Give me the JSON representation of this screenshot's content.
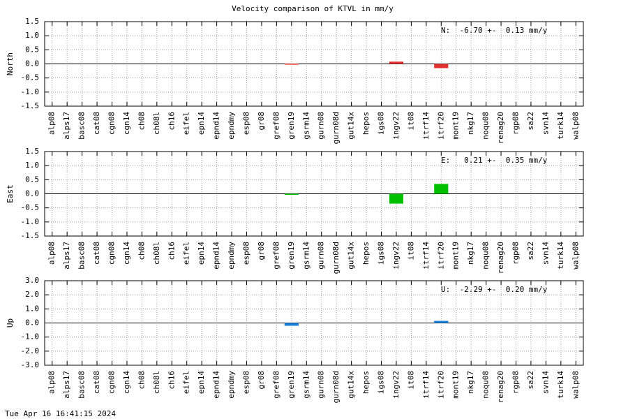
{
  "title": "Velocity comparison of KTVL in mm/y",
  "footer": "Tue Apr 16 16:41:15 2024",
  "chart_data": [
    {
      "type": "bar",
      "ylabel": "North",
      "annotation": "N:  -6.70 +-  0.13 mm/y",
      "color": "#e03030",
      "grid": true,
      "categories": [
        "alp08",
        "alps17",
        "basc08",
        "cat08",
        "cgn08",
        "cgn14",
        "ch08",
        "ch08l",
        "ch16",
        "eifel",
        "epn14",
        "epnd14",
        "epndmy",
        "esp08",
        "gr08",
        "gref08",
        "gren19",
        "gsrm14",
        "gurn08",
        "gurn08d",
        "gut14x",
        "hepos",
        "igs08",
        "ingv22",
        "it08",
        "itrf14",
        "itrf20",
        "mont19",
        "nkg17",
        "noqu08",
        "renag20",
        "rgp08",
        "sa22",
        "svn14",
        "turk14",
        "walp08"
      ],
      "values": [
        null,
        null,
        null,
        null,
        null,
        null,
        null,
        null,
        null,
        null,
        null,
        null,
        null,
        null,
        null,
        null,
        0.01,
        null,
        null,
        null,
        null,
        null,
        null,
        0.08,
        null,
        null,
        -0.15,
        null,
        null,
        null,
        null,
        null,
        null,
        null,
        null,
        null
      ],
      "ylim": [
        -1.5,
        1.5
      ],
      "yticks": [
        1.5,
        {
          "value": 1.0,
          "label": "1.0"
        },
        0.5,
        {
          "value": 0.0,
          "label": "0.0"
        },
        -0.5,
        {
          "value": -1.0,
          "label": "-1.0"
        },
        -1.5
      ]
    },
    {
      "type": "bar",
      "ylabel": "East",
      "annotation": "E:   0.21 +-  0.35 mm/y",
      "color": "#00c000",
      "grid": true,
      "categories": [
        "alp08",
        "alps17",
        "basc08",
        "cat08",
        "cgn08",
        "cgn14",
        "ch08",
        "ch08l",
        "ch16",
        "eifel",
        "epn14",
        "epnd14",
        "epndmy",
        "esp08",
        "gr08",
        "gref08",
        "gren19",
        "gsrm14",
        "gurn08",
        "gurn08d",
        "gut14x",
        "hepos",
        "igs08",
        "ingv22",
        "it08",
        "itrf14",
        "itrf20",
        "mont19",
        "nkg17",
        "noqu08",
        "renag20",
        "rgp08",
        "sa22",
        "svn14",
        "turk14",
        "walp08"
      ],
      "values": [
        null,
        null,
        null,
        null,
        null,
        null,
        null,
        null,
        null,
        null,
        null,
        null,
        null,
        null,
        null,
        null,
        -0.02,
        null,
        null,
        null,
        null,
        null,
        null,
        -0.35,
        null,
        null,
        0.35,
        null,
        null,
        null,
        null,
        null,
        null,
        null,
        null,
        null
      ],
      "ylim": [
        -1.5,
        1.5
      ],
      "yticks": [
        1.5,
        {
          "value": 1.0,
          "label": "1.0"
        },
        0.5,
        {
          "value": 0.0,
          "label": "0.0"
        },
        -0.5,
        {
          "value": -1.0,
          "label": "-1.0"
        },
        -1.5
      ]
    },
    {
      "type": "bar",
      "ylabel": "Up",
      "annotation": "U:  -2.29 +-  0.20 mm/y",
      "color": "#1a7fd8",
      "grid": true,
      "categories": [
        "alp08",
        "alps17",
        "basc08",
        "cat08",
        "cgn08",
        "cgn14",
        "ch08",
        "ch08l",
        "ch16",
        "eifel",
        "epn14",
        "epnd14",
        "epndmy",
        "esp08",
        "gr08",
        "gref08",
        "gren19",
        "gsrm14",
        "gurn08",
        "gurn08d",
        "gut14x",
        "hepos",
        "igs08",
        "ingv22",
        "it08",
        "itrf14",
        "itrf20",
        "mont19",
        "nkg17",
        "noqu08",
        "renag20",
        "rgp08",
        "sa22",
        "svn14",
        "turk14",
        "walp08"
      ],
      "values": [
        null,
        null,
        null,
        null,
        null,
        null,
        null,
        null,
        null,
        null,
        null,
        null,
        null,
        null,
        null,
        null,
        -0.2,
        null,
        null,
        null,
        null,
        null,
        null,
        null,
        null,
        null,
        0.15,
        null,
        null,
        null,
        null,
        null,
        null,
        null,
        null,
        null
      ],
      "ylim": [
        -3,
        3
      ],
      "yticks": [
        {
          "value": 3,
          "label": "3.0"
        },
        {
          "value": 2,
          "label": "2.0"
        },
        {
          "value": 1,
          "label": "1.0"
        },
        {
          "value": 0,
          "label": "0.0"
        },
        {
          "value": -1,
          "label": "-1.0"
        },
        {
          "value": -2,
          "label": "-2.0"
        },
        {
          "value": -3,
          "label": "-3.0"
        }
      ]
    }
  ]
}
